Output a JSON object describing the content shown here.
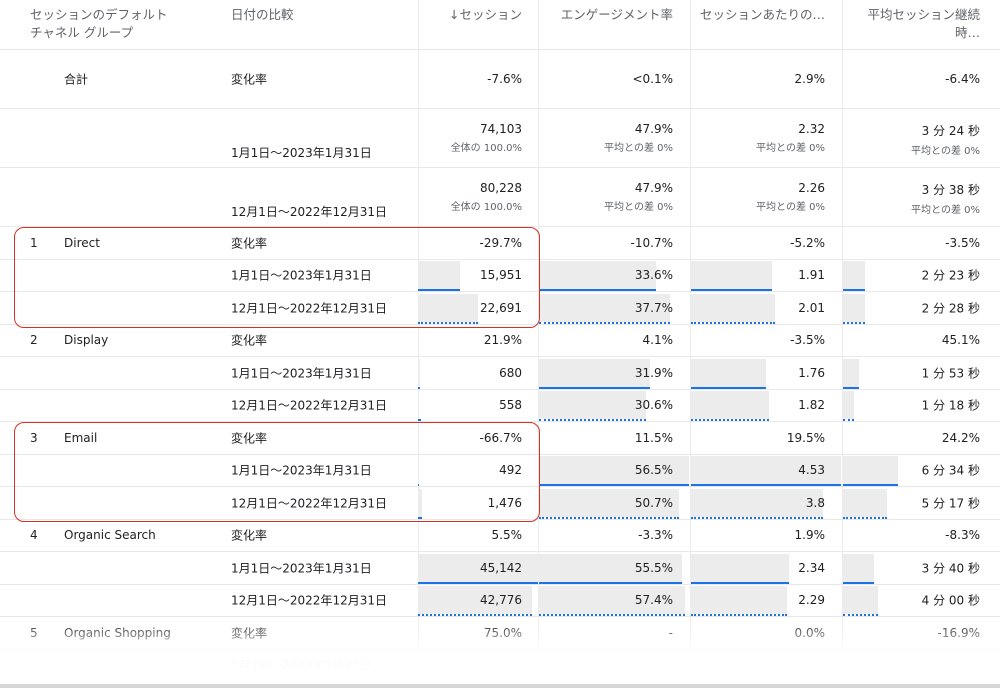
{
  "headers": {
    "channel": "セッションのデフォルト チャネル グループ",
    "date": "日付の比較",
    "sessions": "↓セッション",
    "engagement": "エンゲージメント率",
    "per_session": "セッションあたりの…",
    "avg_duration": "平均セッション継続時…"
  },
  "labels": {
    "total": "合計",
    "change": "変化率",
    "range_current": "1月1日〜2023年1月31日",
    "range_prev": "12月1日〜2022年12月31日",
    "share_label": "全体の 100.0%",
    "avg_diff": "平均との差 0%"
  },
  "totals": {
    "change": [
      "-7.6%",
      "<0.1%",
      "2.9%",
      "-6.4%"
    ],
    "current": [
      "74,103",
      "47.9%",
      "2.32",
      "3 分 24 秒"
    ],
    "prev": [
      "80,228",
      "47.9%",
      "2.26",
      "3 分 38 秒"
    ]
  },
  "rows": [
    {
      "rank": "1",
      "channel": "Direct",
      "change": [
        "-29.7%",
        "-10.7%",
        "-5.2%",
        "-3.5%"
      ],
      "current": [
        "15,951",
        "33.6%",
        "1.91",
        "2 分 23 秒"
      ],
      "prev": [
        "22,691",
        "37.7%",
        "2.01",
        "2 分 28 秒"
      ]
    },
    {
      "rank": "2",
      "channel": "Display",
      "change": [
        "21.9%",
        "4.1%",
        "-3.5%",
        "45.1%"
      ],
      "current": [
        "680",
        "31.9%",
        "1.76",
        "1 分 53 秒"
      ],
      "prev": [
        "558",
        "30.6%",
        "1.82",
        "1 分 18 秒"
      ]
    },
    {
      "rank": "3",
      "channel": "Email",
      "change": [
        "-66.7%",
        "11.5%",
        "19.5%",
        "24.2%"
      ],
      "current": [
        "492",
        "56.5%",
        "4.53",
        "6 分 34 秒"
      ],
      "prev": [
        "1,476",
        "50.7%",
        "3.8",
        "5 分 17 秒"
      ]
    },
    {
      "rank": "4",
      "channel": "Organic Search",
      "change": [
        "5.5%",
        "-3.3%",
        "1.9%",
        "-8.3%"
      ],
      "current": [
        "45,142",
        "55.5%",
        "2.34",
        "3 分 40 秒"
      ],
      "prev": [
        "42,776",
        "57.4%",
        "2.29",
        "4 分 00 秒"
      ]
    },
    {
      "rank": "5",
      "channel": "Organic Shopping",
      "change": [
        "75.0%",
        "-",
        "0.0%",
        "-16.9%"
      ]
    }
  ],
  "bar_fractions": [
    {
      "current": [
        0.35,
        0.78,
        0.54,
        0.14
      ],
      "prev": [
        0.5,
        0.87,
        0.56,
        0.14
      ]
    },
    {
      "current": [
        0.015,
        0.74,
        0.5,
        0.1
      ],
      "prev": [
        0.012,
        0.71,
        0.52,
        0.07
      ]
    },
    {
      "current": [
        0.01,
        1.0,
        1.0,
        0.35
      ],
      "prev": [
        0.03,
        0.93,
        0.88,
        0.28
      ]
    },
    {
      "current": [
        1.0,
        0.95,
        0.65,
        0.2
      ],
      "prev": [
        0.95,
        0.97,
        0.64,
        0.22
      ]
    }
  ],
  "colors": {
    "accent": "#1a73e8",
    "highlight": "#d93025",
    "bar": "#ececec"
  }
}
